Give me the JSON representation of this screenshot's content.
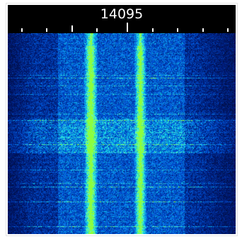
{
  "scale": {
    "center_frequency": "14095"
  },
  "colors": {
    "background": "#000000",
    "noise_floor": "#0a2a9a",
    "signal_core": "#7fffd4",
    "signal_peak": "#9cff3a"
  },
  "icons": {
    "waterfall": "spectrogram-waterfall"
  }
}
